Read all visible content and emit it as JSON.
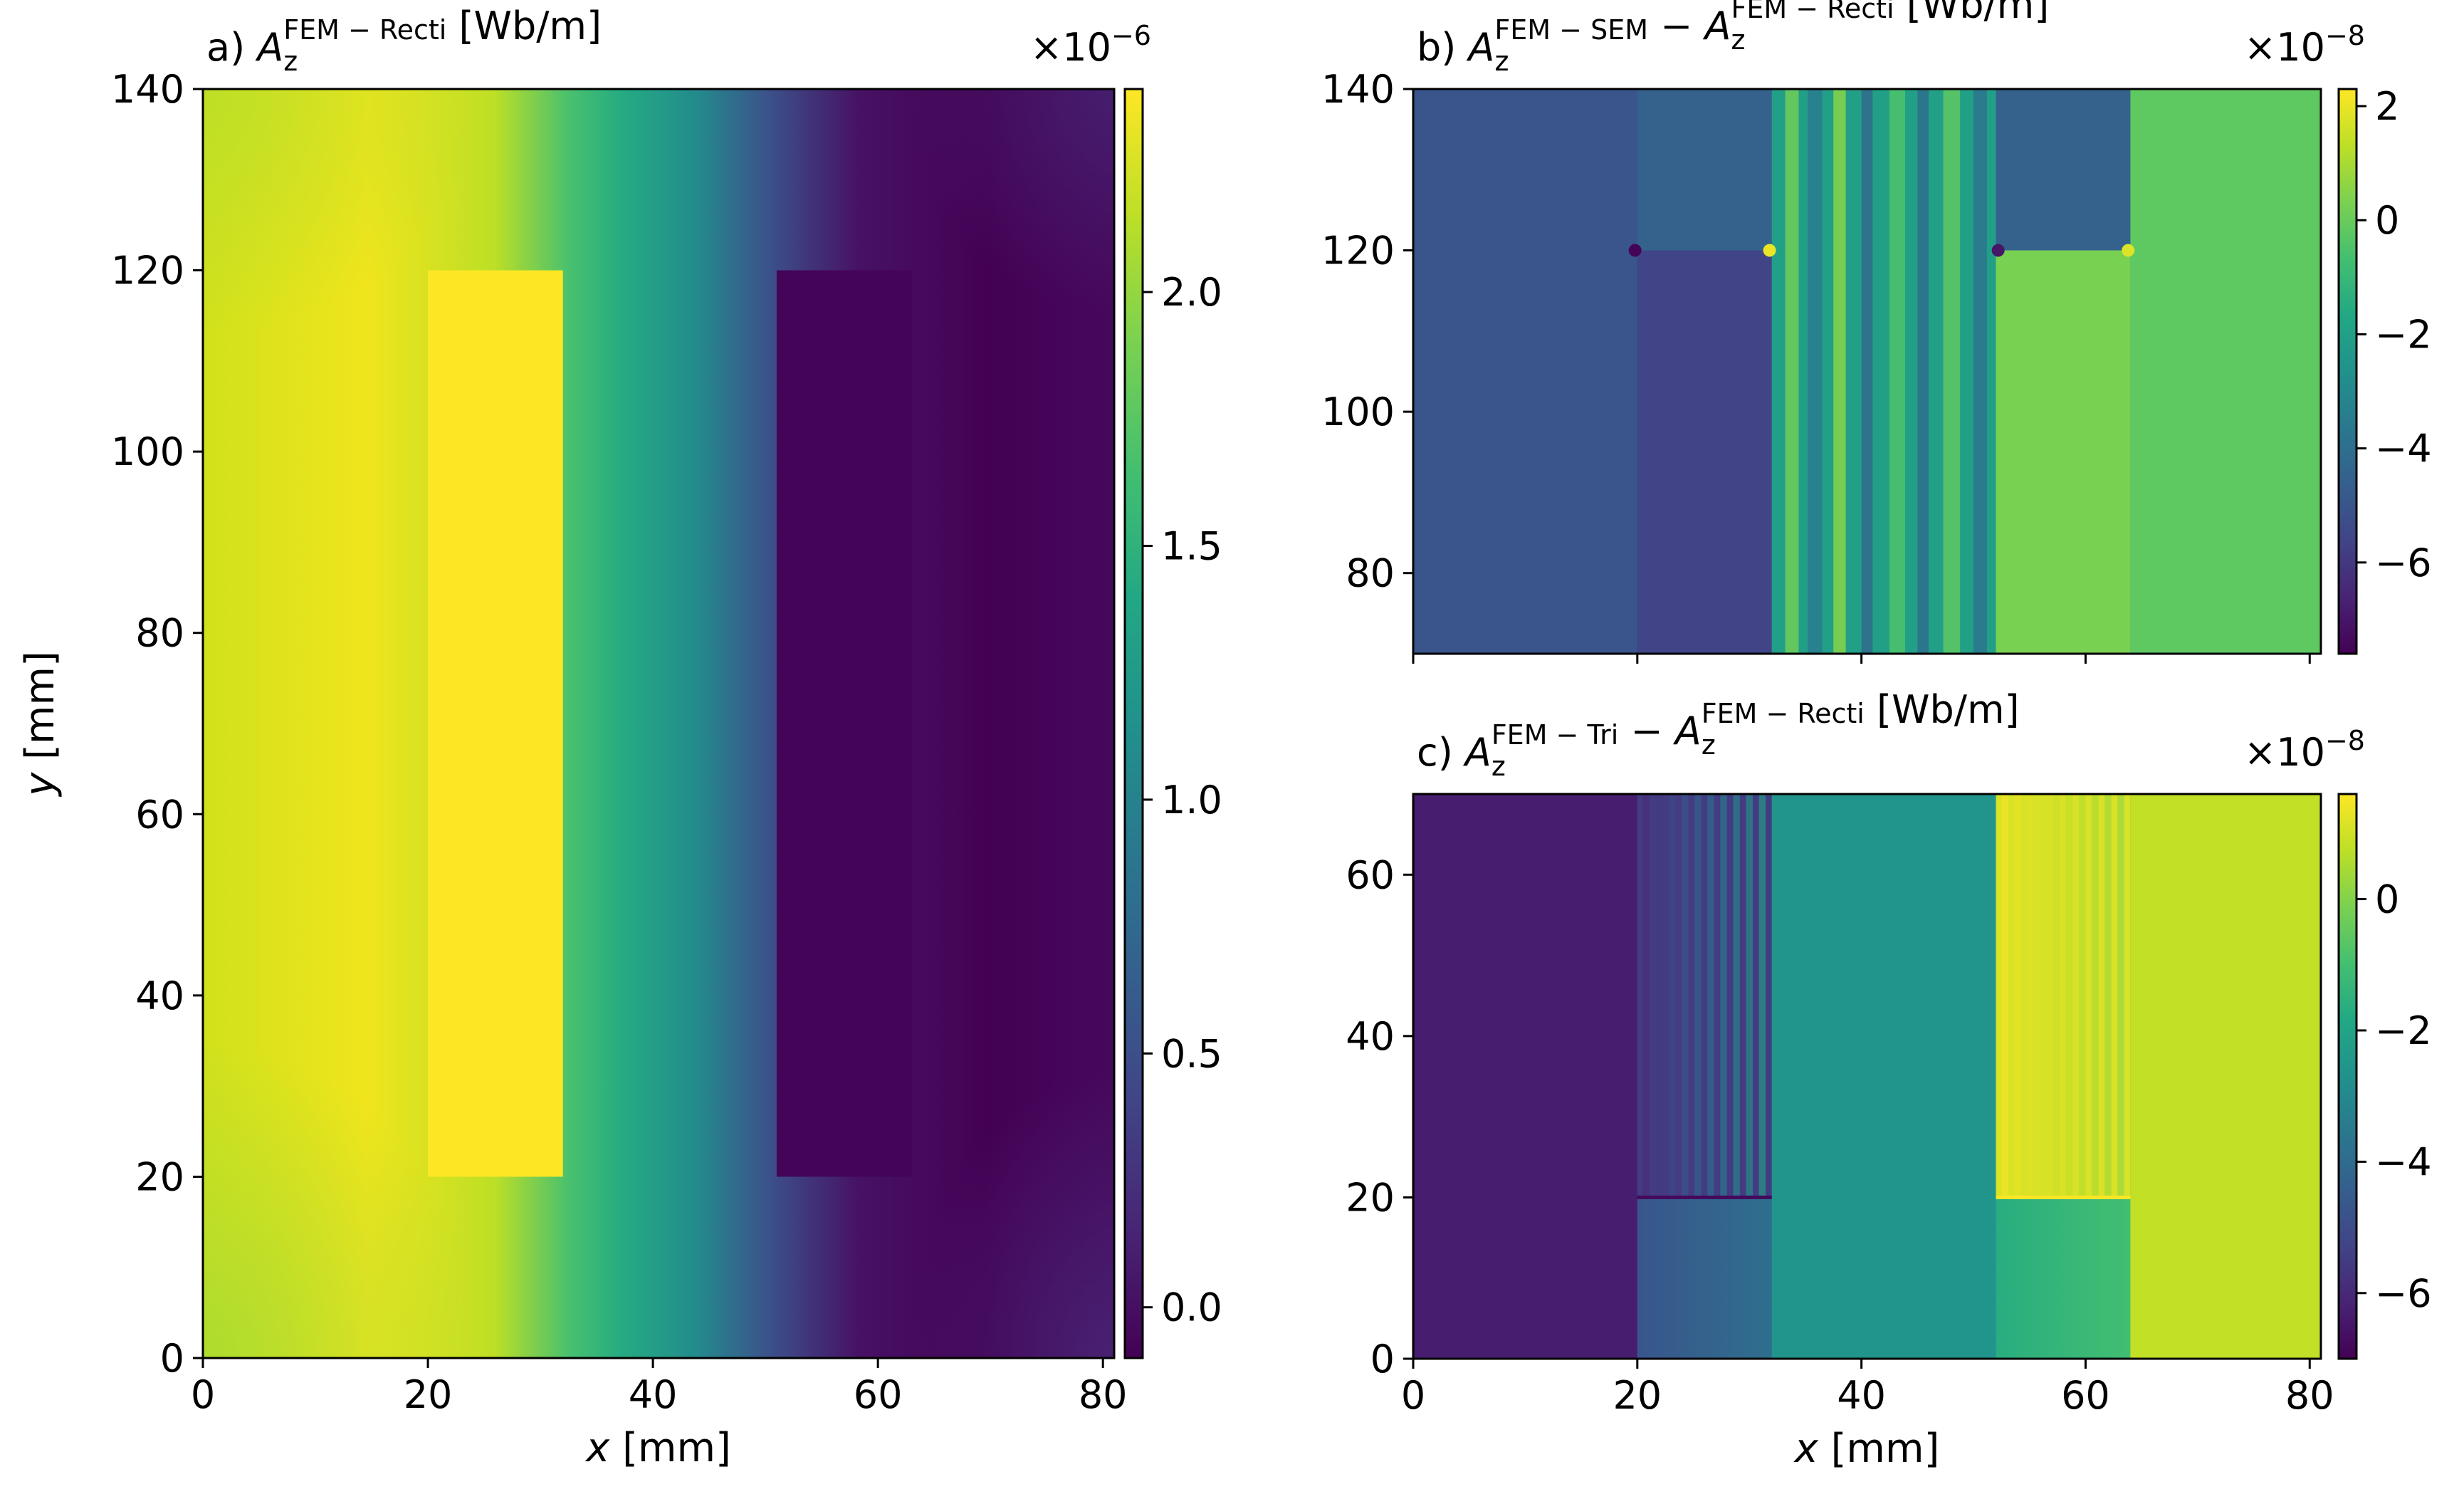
{
  "chart_data": [
    {
      "panel": "a",
      "type": "heatmap",
      "title": {
        "prefix": "a) ",
        "var": "A",
        "sub": "z",
        "sup": "FEM − Recti",
        "suffix": " [Wb/m]"
      },
      "xlabel": "x [mm]",
      "ylabel": "y [mm]",
      "xlim": [
        0,
        81
      ],
      "ylim": [
        0,
        140
      ],
      "xticks": [
        0,
        20,
        40,
        60,
        80
      ],
      "xtick_labels": [
        "0",
        "20",
        "40",
        "60",
        "80"
      ],
      "yticks": [
        0,
        20,
        40,
        60,
        80,
        100,
        120,
        140
      ],
      "ytick_labels": [
        "0",
        "20",
        "40",
        "60",
        "80",
        "100",
        "120",
        "140"
      ],
      "colormap": "viridis",
      "colorbar": {
        "range": [
          -0.1,
          2.4
        ],
        "ticks": [
          0.0,
          0.5,
          1.0,
          1.5,
          2.0
        ],
        "tick_labels": [
          "0.0",
          "0.5",
          "1.0",
          "1.5",
          "2.0"
        ],
        "multiplier": "×10",
        "exponent": "−6"
      },
      "regions": [
        {
          "x": [
            20,
            32
          ],
          "y": [
            20,
            120
          ],
          "value": 2.4
        },
        {
          "x": [
            51,
            63
          ],
          "y": [
            20,
            120
          ],
          "value": -0.08
        }
      ]
    },
    {
      "panel": "b",
      "type": "heatmap",
      "title": {
        "prefix": "b) ",
        "var": "A",
        "sub": "z",
        "sup": "FEM − SEM",
        "mid": " − ",
        "var2": "A",
        "sub2": "z",
        "sup2": "FEM − Recti",
        "suffix": " [Wb/m]"
      },
      "xlabel": "",
      "ylabel": "",
      "xlim": [
        0,
        81
      ],
      "ylim": [
        70,
        140
      ],
      "xticks": [
        0,
        20,
        40,
        60,
        80
      ],
      "yticks": [
        80,
        100,
        120,
        140
      ],
      "ytick_labels": [
        "80",
        "100",
        "120",
        "140"
      ],
      "colormap": "viridis",
      "colorbar": {
        "range": [
          -7.6,
          2.3
        ],
        "ticks": [
          -6,
          -4,
          -2,
          0,
          2
        ],
        "tick_labels": [
          "−6",
          "−4",
          "−2",
          "0",
          "2"
        ],
        "multiplier": "×10",
        "exponent": "−8"
      },
      "regions": [
        {
          "x": [
            0,
            20
          ],
          "y": [
            70,
            140
          ],
          "value": -5.0
        },
        {
          "x": [
            20,
            32
          ],
          "y": [
            70,
            120
          ],
          "value": -5.6
        },
        {
          "x": [
            32,
            52
          ],
          "y": [
            70,
            140
          ],
          "value": -2.0
        },
        {
          "x": [
            52,
            64
          ],
          "y": [
            70,
            120
          ],
          "value": 0.3
        },
        {
          "x": [
            64,
            81
          ],
          "y": [
            70,
            140
          ],
          "value": -0.2
        }
      ]
    },
    {
      "panel": "c",
      "type": "heatmap",
      "title": {
        "prefix": "c) ",
        "var": "A",
        "sub": "z",
        "sup": "FEM − Tri",
        "mid": " − ",
        "var2": "A",
        "sub2": "z",
        "sup2": "FEM − Recti",
        "suffix": " [Wb/m]"
      },
      "xlabel": "x [mm]",
      "ylabel": "",
      "xlim": [
        0,
        81
      ],
      "ylim": [
        0,
        70
      ],
      "xticks": [
        0,
        20,
        40,
        60,
        80
      ],
      "xtick_labels": [
        "0",
        "20",
        "40",
        "60",
        "80"
      ],
      "yticks": [
        0,
        20,
        40,
        60
      ],
      "ytick_labels": [
        "0",
        "20",
        "40",
        "60"
      ],
      "colormap": "viridis",
      "colorbar": {
        "range": [
          -7.0,
          1.6
        ],
        "ticks": [
          -6,
          -4,
          -2,
          0
        ],
        "tick_labels": [
          "−6",
          "−4",
          "−2",
          "0"
        ],
        "multiplier": "×10",
        "exponent": "−8"
      },
      "regions": [
        {
          "x": [
            0,
            20
          ],
          "y": [
            0,
            70
          ],
          "value": -6.3
        },
        {
          "x": [
            20,
            32
          ],
          "y": [
            20,
            70
          ],
          "value": -5.5
        },
        {
          "x": [
            32,
            52
          ],
          "y": [
            0,
            70
          ],
          "value": -2.6
        },
        {
          "x": [
            52,
            64
          ],
          "y": [
            20,
            70
          ],
          "value": 1.1
        },
        {
          "x": [
            64,
            81
          ],
          "y": [
            0,
            70
          ],
          "value": 0.8
        }
      ]
    }
  ]
}
